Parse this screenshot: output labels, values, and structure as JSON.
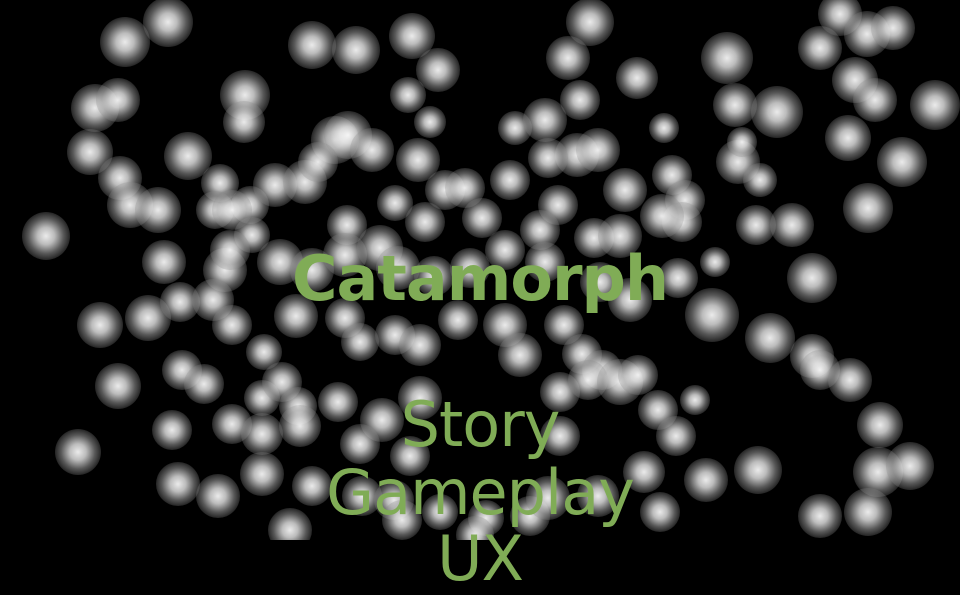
{
  "title": "Catamorph",
  "menu": {
    "items": [
      {
        "label": "Story"
      },
      {
        "label": "Gameplay"
      },
      {
        "label": "UX"
      }
    ]
  },
  "colors": {
    "background": "#000000",
    "text": "#80ac56",
    "orb": "#ffffff"
  }
}
